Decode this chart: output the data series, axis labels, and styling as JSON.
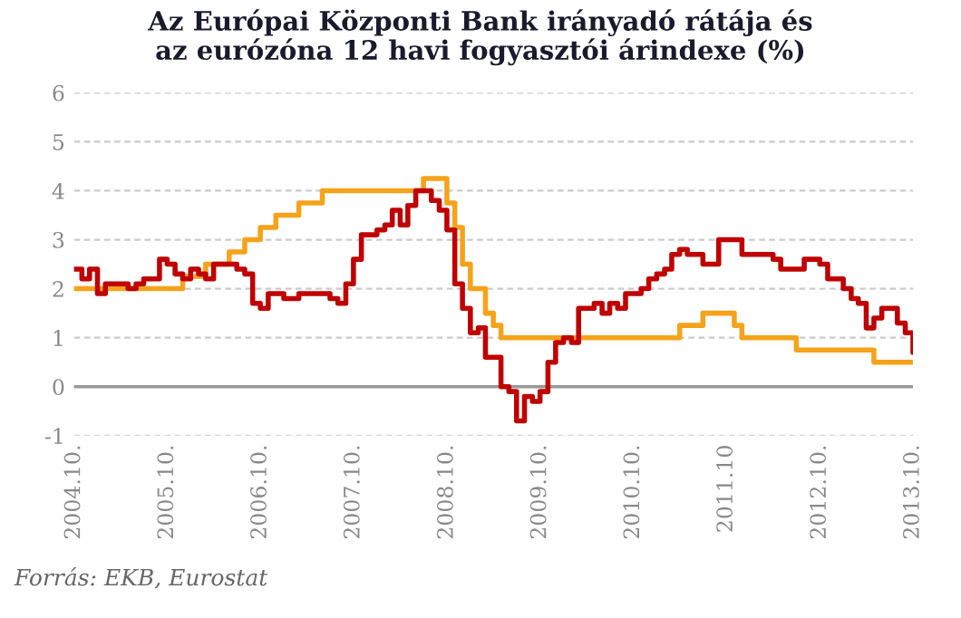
{
  "chart_data": {
    "type": "step",
    "title": "Az Európai Központi Bank irányadó rátája és\naz eurózóna 12 havi fogyasztói árindexe (%)",
    "annotations": [
      "Forrás: EKB, Eurostat"
    ],
    "series": [
      {
        "color": "#f5a31a",
        "x": [
          "2004-10",
          "2005-12",
          "2006-03",
          "2006-06",
          "2006-08",
          "2006-10",
          "2006-12",
          "2007-03",
          "2007-06",
          "2008-07",
          "2008-10",
          "2008-11",
          "2008-12",
          "2009-01",
          "2009-03",
          "2009-04",
          "2009-05",
          "2011-04",
          "2011-07",
          "2011-11",
          "2011-12",
          "2012-07",
          "2013-05",
          "2013-10"
        ],
        "values": [
          2.0,
          2.25,
          2.5,
          2.75,
          3.0,
          3.25,
          3.5,
          3.75,
          4.0,
          4.25,
          3.75,
          3.25,
          2.5,
          2.0,
          1.5,
          1.25,
          1.0,
          1.25,
          1.5,
          1.25,
          1.0,
          0.75,
          0.5,
          0.5
        ]
      },
      {
        "color": "#c00000",
        "x": [
          "2004-10",
          "2004-11",
          "2004-12",
          "2005-01",
          "2005-02",
          "2005-03",
          "2005-04",
          "2005-05",
          "2005-06",
          "2005-07",
          "2005-08",
          "2005-09",
          "2005-10",
          "2005-11",
          "2005-12",
          "2006-01",
          "2006-02",
          "2006-03",
          "2006-04",
          "2006-05",
          "2006-06",
          "2006-07",
          "2006-08",
          "2006-09",
          "2006-10",
          "2006-11",
          "2006-12",
          "2007-01",
          "2007-02",
          "2007-03",
          "2007-04",
          "2007-05",
          "2007-06",
          "2007-07",
          "2007-08",
          "2007-09",
          "2007-10",
          "2007-11",
          "2007-12",
          "2008-01",
          "2008-02",
          "2008-03",
          "2008-04",
          "2008-05",
          "2008-06",
          "2008-07",
          "2008-08",
          "2008-09",
          "2008-10",
          "2008-11",
          "2008-12",
          "2009-01",
          "2009-02",
          "2009-03",
          "2009-04",
          "2009-05",
          "2009-06",
          "2009-07",
          "2009-08",
          "2009-09",
          "2009-10",
          "2009-11",
          "2009-12",
          "2010-01",
          "2010-02",
          "2010-03",
          "2010-04",
          "2010-05",
          "2010-06",
          "2010-07",
          "2010-08",
          "2010-09",
          "2010-10",
          "2010-11",
          "2010-12",
          "2011-01",
          "2011-02",
          "2011-03",
          "2011-04",
          "2011-05",
          "2011-06",
          "2011-07",
          "2011-08",
          "2011-09",
          "2011-10",
          "2011-11",
          "2011-12",
          "2012-01",
          "2012-02",
          "2012-03",
          "2012-04",
          "2012-05",
          "2012-06",
          "2012-07",
          "2012-08",
          "2012-09",
          "2012-10",
          "2012-11",
          "2012-12",
          "2013-01",
          "2013-02",
          "2013-03",
          "2013-04",
          "2013-05",
          "2013-06",
          "2013-07",
          "2013-08",
          "2013-09",
          "2013-10"
        ],
        "values": [
          2.4,
          2.2,
          2.4,
          1.9,
          2.1,
          2.1,
          2.1,
          2.0,
          2.1,
          2.2,
          2.2,
          2.6,
          2.5,
          2.3,
          2.2,
          2.4,
          2.3,
          2.2,
          2.5,
          2.5,
          2.5,
          2.4,
          2.3,
          1.7,
          1.6,
          1.9,
          1.9,
          1.8,
          1.8,
          1.9,
          1.9,
          1.9,
          1.9,
          1.8,
          1.7,
          2.1,
          2.6,
          3.1,
          3.1,
          3.2,
          3.3,
          3.6,
          3.3,
          3.7,
          4.0,
          4.0,
          3.8,
          3.6,
          3.2,
          2.1,
          1.6,
          1.1,
          1.2,
          0.6,
          0.6,
          0.0,
          -0.1,
          -0.7,
          -0.2,
          -0.3,
          -0.1,
          0.5,
          0.9,
          1.0,
          0.9,
          1.6,
          1.6,
          1.7,
          1.5,
          1.7,
          1.6,
          1.9,
          1.9,
          2.0,
          2.2,
          2.3,
          2.4,
          2.7,
          2.8,
          2.7,
          2.7,
          2.5,
          2.5,
          3.0,
          3.0,
          3.0,
          2.7,
          2.7,
          2.7,
          2.7,
          2.6,
          2.4,
          2.4,
          2.4,
          2.6,
          2.6,
          2.5,
          2.2,
          2.2,
          2.0,
          1.8,
          1.7,
          1.2,
          1.4,
          1.6,
          1.6,
          1.3,
          1.1,
          0.7
        ]
      }
    ],
    "xlim": [
      "2004-10",
      "2013-10"
    ],
    "xticks": [
      {
        "value": "2004-10",
        "label": "2004.10."
      },
      {
        "value": "2005-10",
        "label": "2005.10."
      },
      {
        "value": "2006-10",
        "label": "2006.10."
      },
      {
        "value": "2007-10",
        "label": "2007.10."
      },
      {
        "value": "2008-10",
        "label": "2008.10."
      },
      {
        "value": "2009-10",
        "label": "2009.10."
      },
      {
        "value": "2010-10",
        "label": "2010.10."
      },
      {
        "value": "2011-10",
        "label": "2011.10"
      },
      {
        "value": "2012-10",
        "label": "2012.10."
      },
      {
        "value": "2013-10",
        "label": "2013.10."
      }
    ],
    "ylim": [
      -1,
      6
    ],
    "yticks": [
      -1,
      0,
      1,
      2,
      3,
      4,
      5,
      6
    ],
    "grid": "y",
    "ref_lines": [
      {
        "axis": "y",
        "value": 0,
        "color": "#999999"
      }
    ]
  }
}
